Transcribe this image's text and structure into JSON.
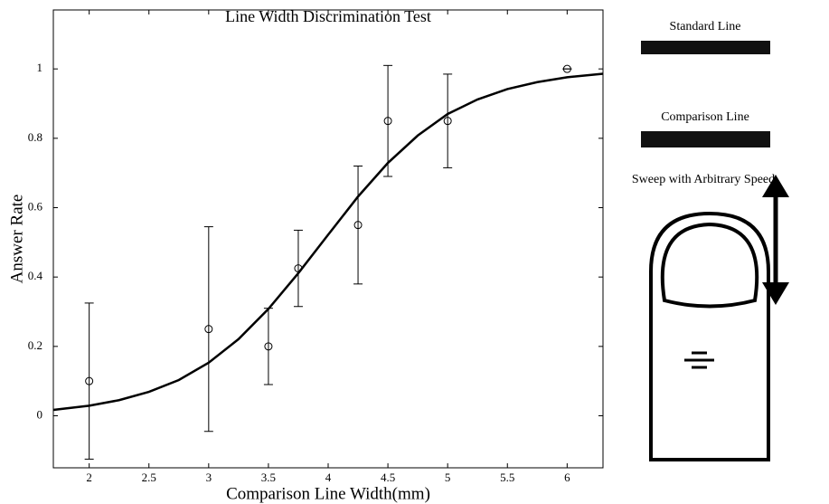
{
  "chart_data": {
    "type": "errorbar-scatter",
    "title": "Line Width Discrimination Test",
    "x_label": "Comparison Line Width(mm)",
    "y_label": "Answer Rate",
    "x": [
      2,
      3,
      3.5,
      3.75,
      4.25,
      4.5,
      5,
      6
    ],
    "values": [
      0.1,
      0.25,
      0.2,
      0.425,
      0.55,
      0.85,
      0.85,
      1.0
    ],
    "errors": [
      0.225,
      0.295,
      0.11,
      0.11,
      0.17,
      0.16,
      0.135,
      0
    ],
    "fit": {
      "x": [
        1.7,
        2,
        2.25,
        2.5,
        2.75,
        3,
        3.25,
        3.5,
        3.75,
        4,
        4.25,
        4.5,
        4.75,
        5,
        5.25,
        5.5,
        5.75,
        6,
        6.3
      ],
      "y": [
        0.017,
        0.029,
        0.045,
        0.069,
        0.103,
        0.153,
        0.221,
        0.308,
        0.411,
        0.522,
        0.632,
        0.729,
        0.808,
        0.87,
        0.912,
        0.942,
        0.962,
        0.976,
        0.986
      ]
    },
    "color": "#000000",
    "xlim": [
      1.7,
      6.3
    ],
    "xticks": [
      2,
      2.5,
      3,
      3.5,
      4,
      4.5,
      5,
      5.5,
      6
    ],
    "ylim": [
      -0.15,
      1.17
    ],
    "yticks": [
      0,
      0.2,
      0.4,
      0.6,
      0.8,
      1
    ]
  },
  "diagram": {
    "standard_label": "Standard Line",
    "comparison_label": "Comparison Line",
    "sweep_label": "Sweep with Arbitrary Speed"
  }
}
